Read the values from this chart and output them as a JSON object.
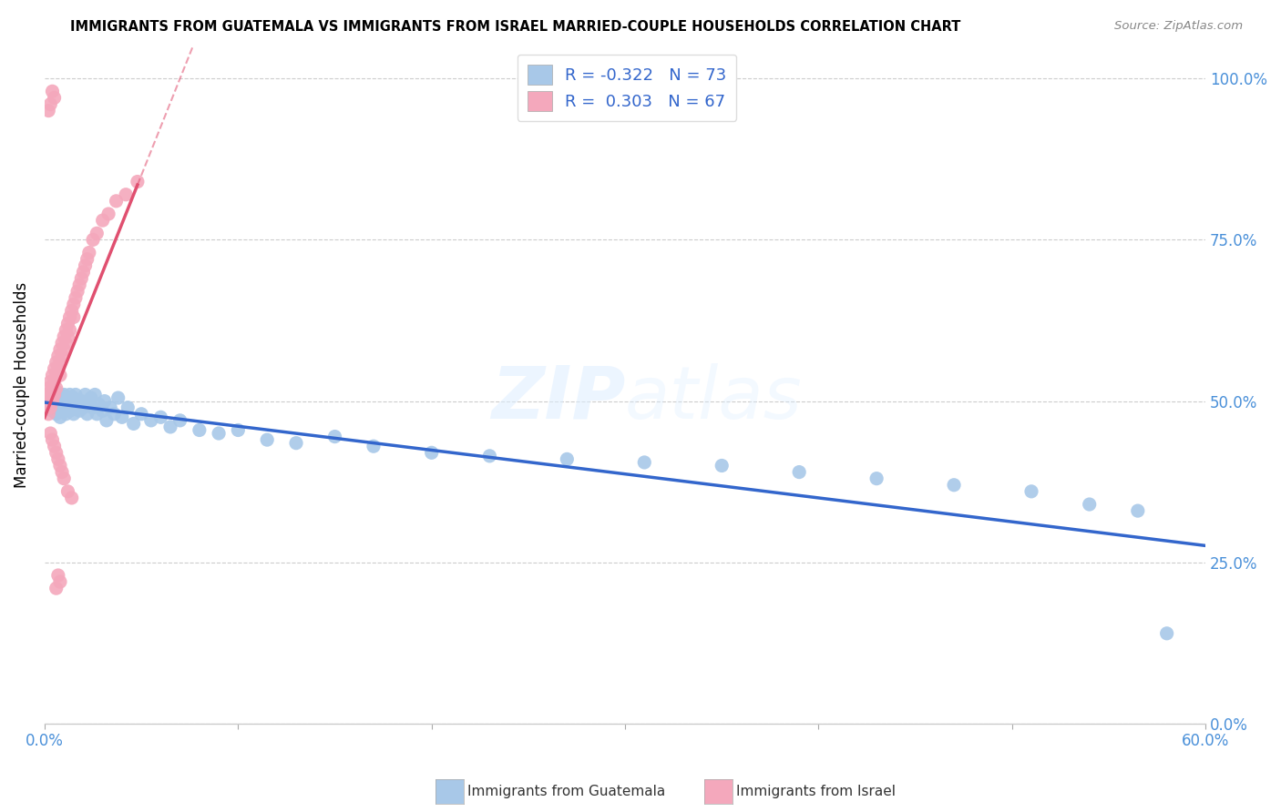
{
  "title": "IMMIGRANTS FROM GUATEMALA VS IMMIGRANTS FROM ISRAEL MARRIED-COUPLE HOUSEHOLDS CORRELATION CHART",
  "source": "Source: ZipAtlas.com",
  "ylabel_label": "Married-couple Households",
  "xlim": [
    0.0,
    0.6
  ],
  "ylim": [
    0.0,
    1.05
  ],
  "legend_r1": "R = -0.322",
  "legend_n1": "N = 73",
  "legend_r2": "R =  0.303",
  "legend_n2": "N = 67",
  "watermark": "ZIPatlas",
  "color_guatemala": "#a8c8e8",
  "color_israel": "#f4a8bc",
  "color_line_guatemala": "#3366cc",
  "color_line_israel": "#e05070",
  "color_axis_right": "#4a90d9",
  "color_axis_bottom": "#4a90d9",
  "guat_x": [
    0.002,
    0.003,
    0.004,
    0.004,
    0.005,
    0.005,
    0.006,
    0.006,
    0.007,
    0.007,
    0.008,
    0.008,
    0.009,
    0.009,
    0.01,
    0.01,
    0.01,
    0.011,
    0.011,
    0.012,
    0.012,
    0.013,
    0.013,
    0.014,
    0.015,
    0.015,
    0.016,
    0.016,
    0.017,
    0.018,
    0.019,
    0.02,
    0.021,
    0.022,
    0.023,
    0.024,
    0.025,
    0.026,
    0.027,
    0.028,
    0.03,
    0.031,
    0.032,
    0.034,
    0.036,
    0.038,
    0.04,
    0.043,
    0.046,
    0.05,
    0.055,
    0.06,
    0.065,
    0.07,
    0.08,
    0.09,
    0.1,
    0.115,
    0.13,
    0.15,
    0.17,
    0.2,
    0.23,
    0.27,
    0.31,
    0.35,
    0.39,
    0.43,
    0.47,
    0.51,
    0.54,
    0.565,
    0.58
  ],
  "guat_y": [
    0.49,
    0.5,
    0.485,
    0.51,
    0.495,
    0.505,
    0.48,
    0.515,
    0.49,
    0.5,
    0.475,
    0.51,
    0.485,
    0.495,
    0.5,
    0.49,
    0.51,
    0.48,
    0.505,
    0.49,
    0.5,
    0.485,
    0.51,
    0.495,
    0.48,
    0.505,
    0.49,
    0.51,
    0.495,
    0.485,
    0.5,
    0.49,
    0.51,
    0.48,
    0.495,
    0.505,
    0.49,
    0.51,
    0.48,
    0.495,
    0.485,
    0.5,
    0.47,
    0.49,
    0.48,
    0.505,
    0.475,
    0.49,
    0.465,
    0.48,
    0.47,
    0.475,
    0.46,
    0.47,
    0.455,
    0.45,
    0.455,
    0.44,
    0.435,
    0.445,
    0.43,
    0.42,
    0.415,
    0.41,
    0.405,
    0.4,
    0.39,
    0.38,
    0.37,
    0.36,
    0.34,
    0.33,
    0.14
  ],
  "israel_x": [
    0.001,
    0.001,
    0.002,
    0.002,
    0.002,
    0.003,
    0.003,
    0.003,
    0.004,
    0.004,
    0.004,
    0.005,
    0.005,
    0.005,
    0.006,
    0.006,
    0.006,
    0.007,
    0.007,
    0.008,
    0.008,
    0.008,
    0.009,
    0.009,
    0.01,
    0.01,
    0.011,
    0.011,
    0.012,
    0.012,
    0.013,
    0.013,
    0.014,
    0.015,
    0.015,
    0.016,
    0.017,
    0.018,
    0.019,
    0.02,
    0.021,
    0.022,
    0.023,
    0.025,
    0.027,
    0.03,
    0.033,
    0.037,
    0.042,
    0.048,
    0.003,
    0.004,
    0.005,
    0.006,
    0.007,
    0.008,
    0.009,
    0.01,
    0.012,
    0.014,
    0.002,
    0.003,
    0.004,
    0.005,
    0.006,
    0.007,
    0.008
  ],
  "israel_y": [
    0.49,
    0.51,
    0.5,
    0.52,
    0.48,
    0.53,
    0.51,
    0.49,
    0.54,
    0.52,
    0.5,
    0.55,
    0.53,
    0.51,
    0.56,
    0.54,
    0.52,
    0.57,
    0.55,
    0.58,
    0.56,
    0.54,
    0.59,
    0.57,
    0.6,
    0.58,
    0.61,
    0.59,
    0.62,
    0.6,
    0.63,
    0.61,
    0.64,
    0.65,
    0.63,
    0.66,
    0.67,
    0.68,
    0.69,
    0.7,
    0.71,
    0.72,
    0.73,
    0.75,
    0.76,
    0.78,
    0.79,
    0.81,
    0.82,
    0.84,
    0.45,
    0.44,
    0.43,
    0.42,
    0.41,
    0.4,
    0.39,
    0.38,
    0.36,
    0.35,
    0.95,
    0.96,
    0.98,
    0.97,
    0.21,
    0.23,
    0.22
  ]
}
